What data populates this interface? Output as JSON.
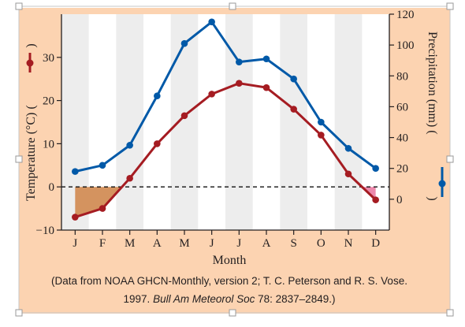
{
  "chart_data": {
    "type": "line",
    "categories": [
      "J",
      "F",
      "M",
      "A",
      "M",
      "J",
      "J",
      "A",
      "S",
      "O",
      "N",
      "D"
    ],
    "series": [
      {
        "name": "Temperature",
        "axis": "left",
        "color": "#a51c22",
        "values": [
          -7,
          -5,
          2,
          10,
          16.5,
          21.5,
          24,
          23,
          18,
          12,
          3,
          -3
        ]
      },
      {
        "name": "Precipitation",
        "axis": "right",
        "color": "#0059a8",
        "values": [
          18,
          22,
          35,
          67,
          101,
          115,
          89,
          91,
          78,
          50,
          33,
          20
        ]
      }
    ],
    "xlabel": "Month",
    "ylabel_left": "Temperature (°C) (",
    "ylabel_right": "Precipitation (mm) (",
    "ylim_left": [
      -10,
      40
    ],
    "yticks_left": [
      -10,
      0,
      10,
      20,
      30
    ],
    "ylim_right": [
      -20,
      120
    ],
    "yticks_right": [
      0,
      20,
      40,
      60,
      80,
      100,
      120
    ],
    "reference_line": {
      "axis": "left",
      "value": 0,
      "style": "dashed"
    },
    "shaded_below_zero": {
      "color": "#d4935f"
    },
    "source_line1": "(Data from NOAA GHCN-Monthly, version 2; T. C. Peterson and R. S. Vose.",
    "source_line2_prefix": "1997. ",
    "source_line2_journal": "Bull Am Meteorol Soc",
    "source_line2_suffix": " 78: 2837–2849.)",
    "colors": {
      "background": "#fcd3b1",
      "plot_area": "#ededed",
      "column_band": "#ffffff"
    }
  }
}
